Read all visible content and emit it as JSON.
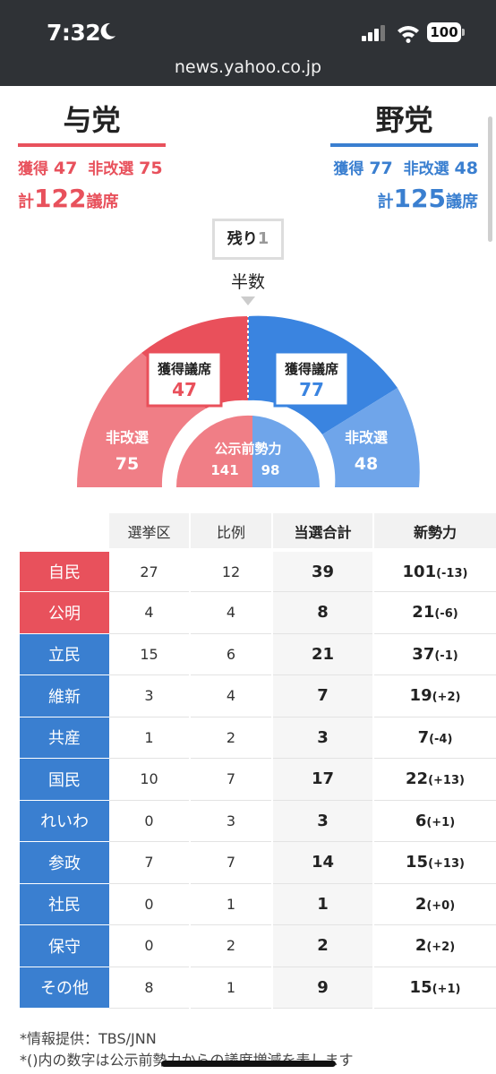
{
  "status_bar": {
    "time": "7:32",
    "battery": "100"
  },
  "browser": {
    "url": "news.yahoo.co.jp"
  },
  "ruling_bloc": {
    "title": "与党",
    "won_label": "獲得",
    "won": "47",
    "non_contested_label": "非改選",
    "non_contested": "75",
    "total_prefix": "計",
    "total": "122",
    "total_suffix": "議席",
    "color": "#e8515c"
  },
  "opposition_bloc": {
    "title": "野党",
    "won_label": "獲得",
    "won": "77",
    "non_contested_label": "非改選",
    "non_contested": "48",
    "total_prefix": "計",
    "total": "125",
    "total_suffix": "議席",
    "color": "#3a7fd0"
  },
  "remaining": {
    "label": "残り",
    "value": "1"
  },
  "half_label": "半数",
  "chart_data": {
    "type": "semicircle-seat",
    "ruling": {
      "won_label": "獲得議席",
      "won": "47",
      "non_contested_label": "非改選",
      "non_contested": "75",
      "pre_election": "141"
    },
    "opposition": {
      "won_label": "獲得議席",
      "won": "77",
      "non_contested_label": "非改選",
      "non_contested": "48",
      "pre_election": "98"
    },
    "pre_election_label": "公示前勢力",
    "remaining": 1
  },
  "table": {
    "headers": [
      "選挙区",
      "比例",
      "当選合計",
      "新勢力"
    ],
    "rows": [
      {
        "party": "自民",
        "side": "r",
        "district": "27",
        "pr": "12",
        "total": "39",
        "new": "101",
        "change": "(-13)"
      },
      {
        "party": "公明",
        "side": "r",
        "district": "4",
        "pr": "4",
        "total": "8",
        "new": "21",
        "change": "(-6)"
      },
      {
        "party": "立民",
        "side": "b",
        "district": "15",
        "pr": "6",
        "total": "21",
        "new": "37",
        "change": "(-1)"
      },
      {
        "party": "維新",
        "side": "b",
        "district": "3",
        "pr": "4",
        "total": "7",
        "new": "19",
        "change": "(+2)"
      },
      {
        "party": "共産",
        "side": "b",
        "district": "1",
        "pr": "2",
        "total": "3",
        "new": "7",
        "change": "(-4)"
      },
      {
        "party": "国民",
        "side": "b",
        "district": "10",
        "pr": "7",
        "total": "17",
        "new": "22",
        "change": "(+13)"
      },
      {
        "party": "れいわ",
        "side": "b",
        "district": "0",
        "pr": "3",
        "total": "3",
        "new": "6",
        "change": "(+1)"
      },
      {
        "party": "参政",
        "side": "b",
        "district": "7",
        "pr": "7",
        "total": "14",
        "new": "15",
        "change": "(+13)"
      },
      {
        "party": "社民",
        "side": "b",
        "district": "0",
        "pr": "1",
        "total": "1",
        "new": "2",
        "change": "(+0)"
      },
      {
        "party": "保守",
        "side": "b",
        "district": "0",
        "pr": "2",
        "total": "2",
        "new": "2",
        "change": "(+2)"
      },
      {
        "party": "その他",
        "side": "b",
        "district": "8",
        "pr": "1",
        "total": "9",
        "new": "15",
        "change": "(+1)"
      }
    ]
  },
  "notes": {
    "source": "*情報提供：TBS/JNN",
    "explanation": "*()内の数字は公示前勢力からの議席増減を表します"
  }
}
